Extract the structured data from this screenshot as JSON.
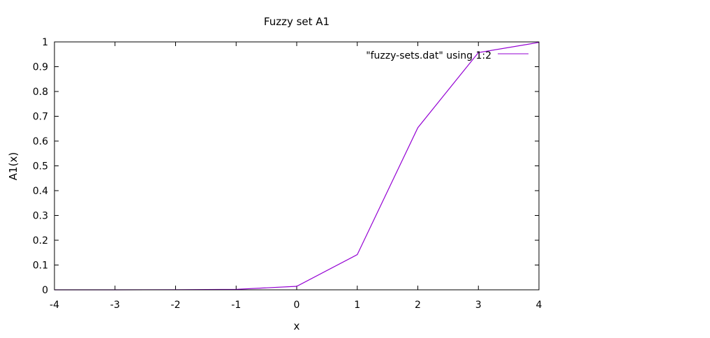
{
  "chart_data": {
    "type": "line",
    "title": "Fuzzy set A1",
    "xlabel": "x",
    "ylabel": "A1(x)",
    "xlim": [
      -4,
      4
    ],
    "ylim": [
      0,
      1
    ],
    "xticks": [
      -4,
      -3,
      -2,
      -1,
      0,
      1,
      2,
      3,
      4
    ],
    "yticks": [
      0,
      0.1,
      0.2,
      0.3,
      0.4,
      0.5,
      0.6,
      0.7,
      0.8,
      0.9,
      1
    ],
    "grid": false,
    "legend_position": "top-right",
    "series": [
      {
        "name": "\"fuzzy-sets.dat\" using 1:2",
        "color": "#9400d3",
        "x": [
          -4,
          -3,
          -2,
          -1,
          0,
          1,
          2,
          3,
          4
        ],
        "y": [
          0.0,
          0.0,
          0.0005,
          0.002,
          0.014,
          0.142,
          0.654,
          0.957,
          0.998
        ]
      }
    ]
  }
}
